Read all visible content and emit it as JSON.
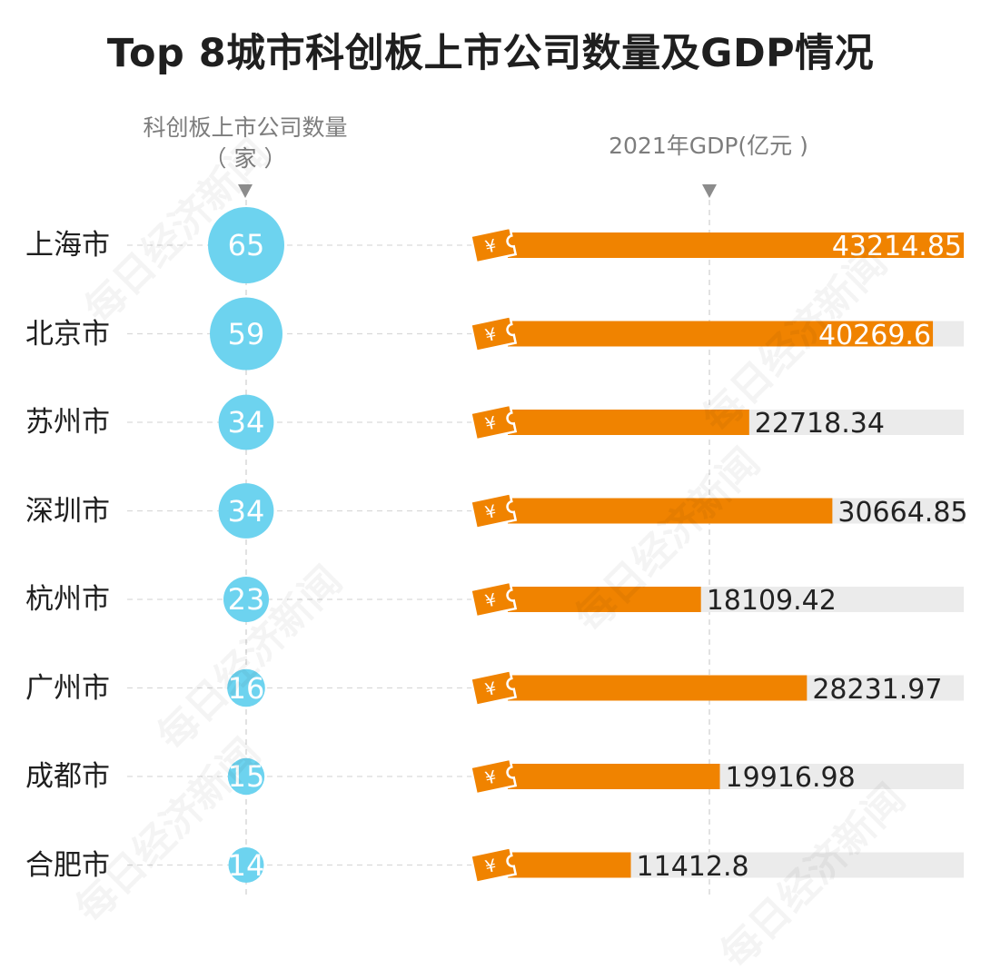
{
  "title": "Top 8城市科创板上市公司数量及GDP情况",
  "headers": {
    "count_line1": "科创板上市公司数量",
    "count_line2": "（ 家 ）",
    "gdp": "2021年GDP(亿元 )"
  },
  "watermark": "每日经济新闻",
  "colors": {
    "bubble": "#6dd3ef",
    "bar": "#f08300",
    "track": "#ebebeb",
    "guide": "#d9d9d9"
  },
  "chart_data": {
    "type": "bar",
    "categories": [
      "上海市",
      "北京市",
      "苏州市",
      "深圳市",
      "杭州市",
      "广州市",
      "成都市",
      "合肥市"
    ],
    "series": [
      {
        "name": "科创板上市公司数量",
        "values": [
          65,
          59,
          34,
          34,
          23,
          16,
          15,
          14
        ]
      },
      {
        "name": "2021年GDP",
        "values": [
          43214.85,
          40269.6,
          22718.34,
          30664.85,
          18109.42,
          28231.97,
          19916.98,
          11412.8
        ]
      }
    ],
    "value_labels": {
      "count": [
        "65",
        "59",
        "34",
        "34",
        "23",
        "16",
        "15",
        "14"
      ],
      "gdp": [
        "43214.85",
        "40269.6",
        "22718.34",
        "30664.85",
        "18109.42",
        "28231.97",
        "19916.98",
        "11412.8"
      ]
    },
    "gdp_xlim": [
      0,
      43214.85
    ],
    "grid": false
  }
}
